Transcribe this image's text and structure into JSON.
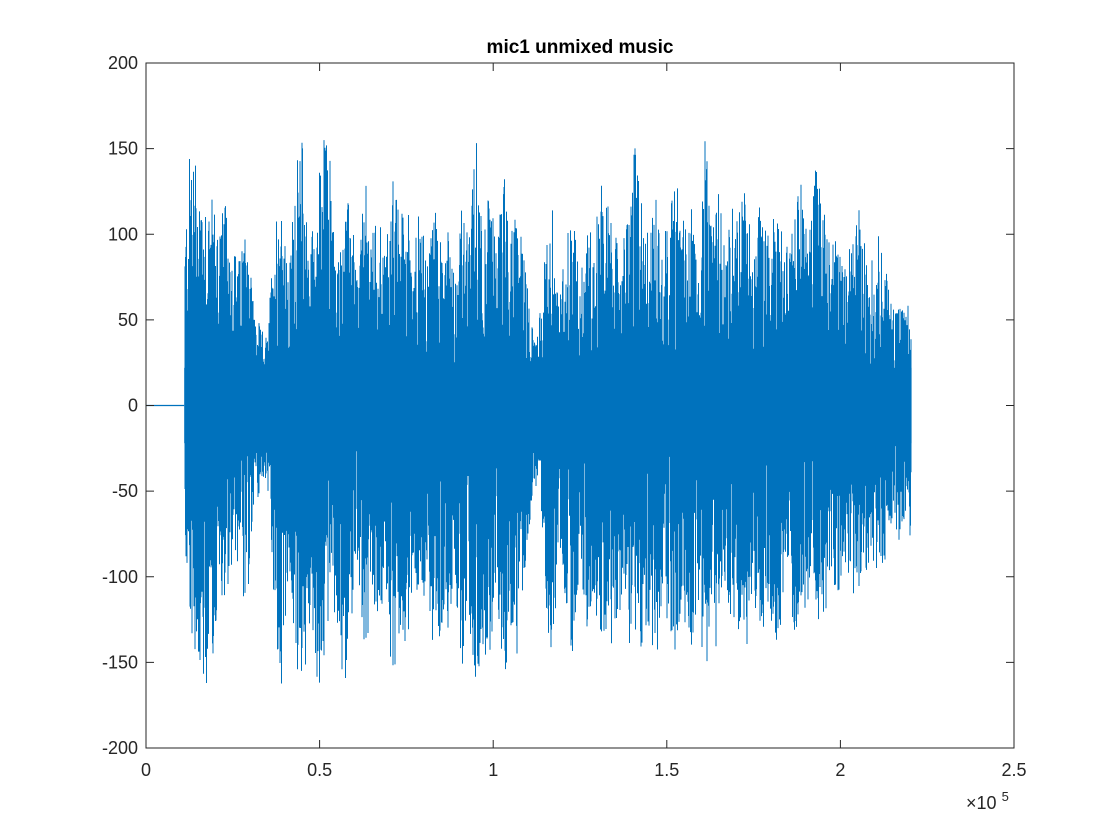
{
  "chart_data": {
    "type": "line",
    "title": "mic1 unmixed music",
    "xlabel": "",
    "ylabel": "",
    "xlim": [
      0,
      250000
    ],
    "ylim": [
      -200,
      200
    ],
    "x_ticks": [
      0,
      50000,
      100000,
      150000,
      200000,
      250000
    ],
    "x_tick_labels": [
      "0",
      "0.5",
      "1",
      "1.5",
      "2",
      "2.5"
    ],
    "x_exponent_prefix": "×10",
    "x_exponent_power": "5",
    "y_ticks": [
      -200,
      -150,
      -100,
      -50,
      0,
      50,
      100,
      150,
      200
    ],
    "y_tick_labels": [
      "-200",
      "-150",
      "-100",
      "-50",
      "0",
      "50",
      "100",
      "150",
      "200"
    ],
    "grid": false,
    "series": [
      {
        "color": "#0072BD",
        "silent_until": 11000,
        "signal_end": 220500,
        "envelope": {
          "x": [
            11000,
            13000,
            15000,
            17000,
            19000,
            21000,
            23000,
            25000,
            27000,
            29000,
            31000,
            33000,
            35000,
            37000,
            39000,
            41000,
            43000,
            45000,
            47000,
            49000,
            51000,
            53000,
            55000,
            57000,
            59000,
            61000,
            63000,
            65000,
            67000,
            69000,
            71000,
            73000,
            75000,
            77000,
            79000,
            81000,
            83000,
            85000,
            87000,
            89000,
            91000,
            93000,
            95000,
            97000,
            99000,
            101000,
            103000,
            105000,
            107000,
            109000,
            111000,
            113000,
            115000,
            117000,
            119000,
            121000,
            123000,
            125000,
            127000,
            129000,
            131000,
            133000,
            135000,
            137000,
            139000,
            141000,
            143000,
            145000,
            147000,
            149000,
            151000,
            153000,
            155000,
            157000,
            159000,
            161000,
            163000,
            165000,
            167000,
            169000,
            171000,
            173000,
            175000,
            177000,
            179000,
            181000,
            183000,
            185000,
            187000,
            189000,
            191000,
            193000,
            195000,
            197000,
            199000,
            201000,
            203000,
            205000,
            207000,
            209000,
            211000,
            213000,
            215000,
            217000,
            219000,
            220500
          ],
          "upper": [
            95,
            162,
            140,
            128,
            122,
            110,
            118,
            95,
            85,
            118,
            60,
            45,
            40,
            110,
            128,
            70,
            140,
            158,
            95,
            118,
            160,
            150,
            80,
            118,
            120,
            75,
            135,
            100,
            118,
            90,
            140,
            110,
            125,
            95,
            118,
            80,
            125,
            95,
            118,
            75,
            120,
            95,
            162,
            110,
            125,
            95,
            140,
            100,
            122,
            85,
            50,
            45,
            90,
            118,
            60,
            100,
            125,
            70,
            115,
            95,
            135,
            120,
            100,
            90,
            118,
            155,
            118,
            100,
            125,
            95,
            122,
            135,
            110,
            128,
            80,
            160,
            100,
            125,
            95,
            118,
            120,
            130,
            90,
            125,
            100,
            118,
            110,
            90,
            118,
            135,
            100,
            150,
            125,
            95,
            118,
            80,
            95,
            120,
            95,
            85,
            100,
            80,
            60,
            60,
            55,
            75
          ],
          "lower": [
            -85,
            -135,
            -155,
            -180,
            -150,
            -120,
            -110,
            -95,
            -100,
            -130,
            -60,
            -50,
            -45,
            -130,
            -175,
            -100,
            -145,
            -185,
            -130,
            -160,
            -175,
            -110,
            -130,
            -170,
            -130,
            -95,
            -160,
            -120,
            -135,
            -100,
            -170,
            -135,
            -150,
            -100,
            -130,
            -95,
            -165,
            -140,
            -130,
            -100,
            -160,
            -120,
            -185,
            -140,
            -160,
            -110,
            -175,
            -130,
            -150,
            -100,
            -60,
            -45,
            -110,
            -160,
            -80,
            -120,
            -150,
            -90,
            -140,
            -110,
            -145,
            -130,
            -150,
            -110,
            -155,
            -150,
            -140,
            -130,
            -165,
            -110,
            -150,
            -145,
            -130,
            -150,
            -110,
            -165,
            -130,
            -150,
            -110,
            -140,
            -130,
            -145,
            -110,
            -155,
            -120,
            -140,
            -130,
            -110,
            -140,
            -130,
            -110,
            -125,
            -140,
            -95,
            -120,
            -95,
            -100,
            -125,
            -100,
            -90,
            -100,
            -90,
            -70,
            -80,
            -60,
            -98
          ]
        }
      }
    ]
  }
}
